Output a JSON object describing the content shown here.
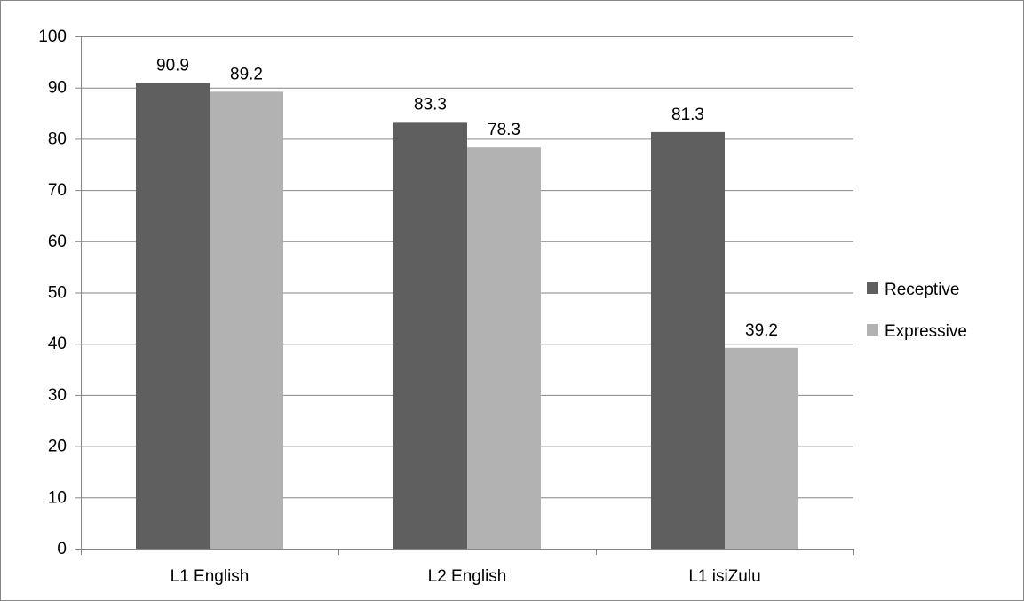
{
  "chart_data": {
    "type": "bar",
    "categories": [
      "L1 English",
      "L2 English",
      "L1 isiZulu"
    ],
    "series": [
      {
        "name": "Receptive",
        "values": [
          90.9,
          83.3,
          81.3
        ],
        "color": "#5f5f5f"
      },
      {
        "name": "Expressive",
        "values": [
          89.2,
          78.3,
          39.2
        ],
        "color": "#b2b2b2"
      }
    ],
    "title": "",
    "xlabel": "",
    "ylabel": "",
    "ylim": [
      0,
      100
    ],
    "y_ticks": [
      0,
      10,
      20,
      30,
      40,
      50,
      60,
      70,
      80,
      90,
      100
    ],
    "data_labels": true,
    "grid": true,
    "legend_position": "right"
  }
}
